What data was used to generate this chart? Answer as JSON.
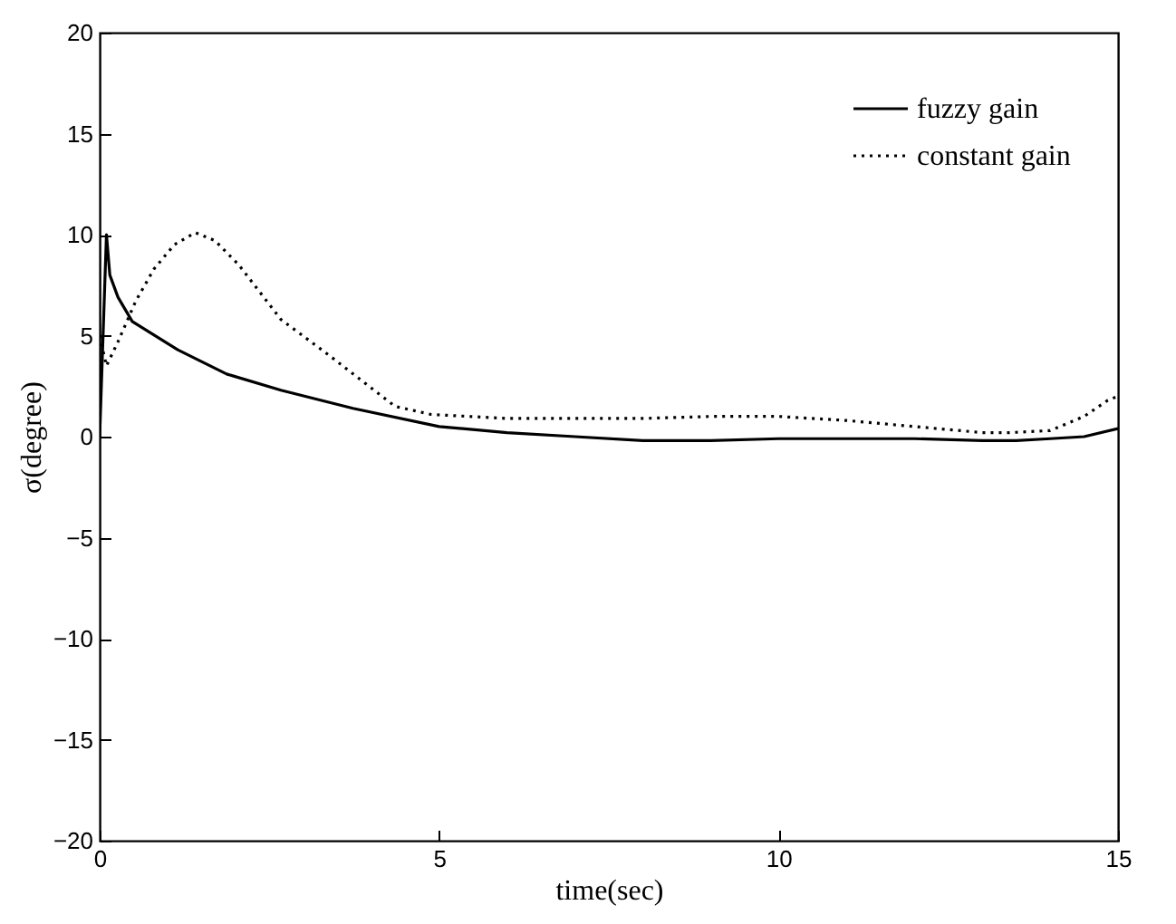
{
  "chart_data": {
    "type": "line",
    "xlabel": "time(sec)",
    "ylabel": "σ(degree)",
    "xlim": [
      0,
      15
    ],
    "xticks": [
      0,
      5,
      10,
      15
    ],
    "ylim": [
      -20,
      20
    ],
    "yticks": [
      -20,
      -15,
      -10,
      -5,
      0,
      5,
      10,
      15,
      20
    ],
    "grid": false,
    "legend": "top right",
    "series": [
      {
        "name": "fuzzy gain",
        "color": "#000000",
        "line_style": "solid",
        "x": [
          0,
          0.05,
          0.1,
          0.15,
          0.27,
          0.48,
          1.15,
          1.87,
          2.67,
          3.73,
          5,
          6,
          7,
          8,
          9,
          10,
          11,
          12,
          13,
          13.5,
          14,
          14.5,
          15
        ],
        "values": [
          0,
          5,
          10,
          8,
          6.9,
          5.7,
          4.3,
          3.1,
          2.3,
          1.4,
          0.5,
          0.2,
          0,
          -0.2,
          -0.2,
          -0.1,
          -0.1,
          -0.1,
          -0.2,
          -0.2,
          -0.1,
          0,
          0.4
        ]
      },
      {
        "name": "constant gain",
        "color": "#000000",
        "line_style": "dotted",
        "x": [
          0,
          0.1,
          0.27,
          0.53,
          0.8,
          1.1,
          1.41,
          1.7,
          2.05,
          2.67,
          3.39,
          4.08,
          4.35,
          4.88,
          6,
          7,
          8,
          9,
          10,
          11,
          12,
          13,
          13.4,
          14,
          14.5,
          14.85,
          15
        ],
        "values": [
          5,
          3.5,
          4.7,
          6.7,
          8.3,
          9.5,
          10.1,
          9.7,
          8.5,
          5.8,
          4,
          2.2,
          1.5,
          1.1,
          0.9,
          0.9,
          0.9,
          1,
          1,
          0.8,
          0.5,
          0.2,
          0.2,
          0.3,
          1,
          1.8,
          2
        ]
      }
    ]
  }
}
